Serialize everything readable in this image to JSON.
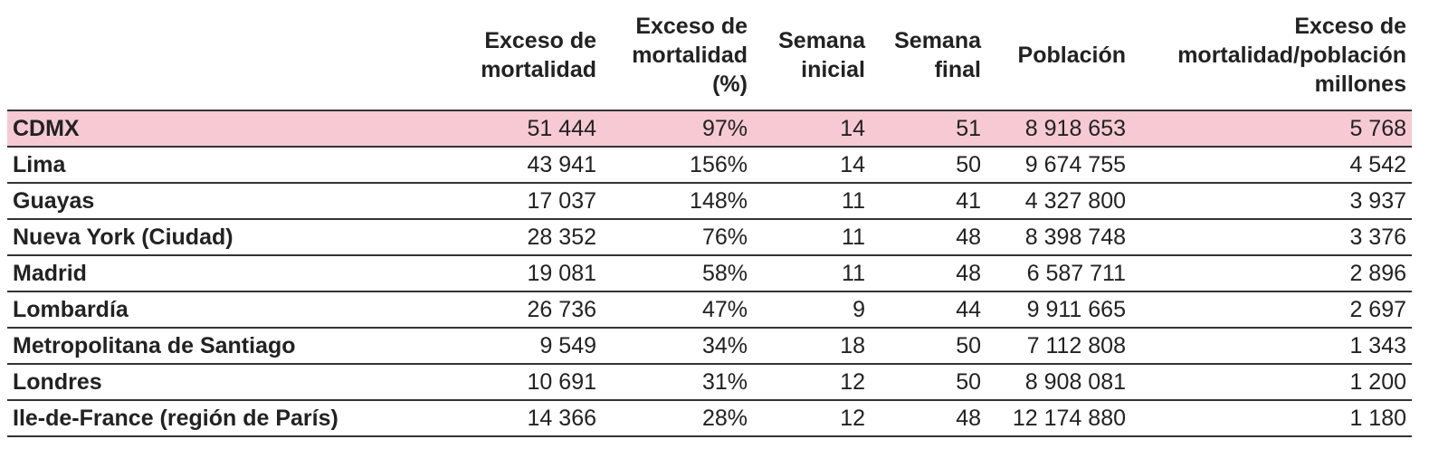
{
  "table": {
    "headers": [
      [
        "Exceso de",
        "mortalidad"
      ],
      [
        "Exceso de",
        "mortalidad",
        "(%)"
      ],
      [
        "Semana",
        "inicial"
      ],
      [
        "Semana",
        "final"
      ],
      [
        "Población"
      ],
      [
        "Exceso de",
        "mortalidad/población",
        "millones"
      ]
    ],
    "highlight_row": 0,
    "rows": [
      [
        "CDMX",
        "51 444",
        "97%",
        "14",
        "51",
        "8 918 653",
        "5 768"
      ],
      [
        "Lima",
        "43 941",
        "156%",
        "14",
        "50",
        "9 674 755",
        "4 542"
      ],
      [
        "Guayas",
        "17 037",
        "148%",
        "11",
        "41",
        "4 327 800",
        "3 937"
      ],
      [
        "Nueva York (Ciudad)",
        "28 352",
        "76%",
        "11",
        "48",
        "8 398 748",
        "3 376"
      ],
      [
        "Madrid",
        "19 081",
        "58%",
        "11",
        "48",
        "6 587 711",
        "2 896"
      ],
      [
        "Lombardía",
        "26 736",
        "47%",
        "9",
        "44",
        "9 911 665",
        "2 697"
      ],
      [
        "Metropolitana de Santiago",
        "9 549",
        "34%",
        "18",
        "50",
        "7 112 808",
        "1 343"
      ],
      [
        "Londres",
        "10 691",
        "31%",
        "12",
        "50",
        "8 908 081",
        "1 200"
      ],
      [
        "Ile-de-France (región de París)",
        "14 366",
        "28%",
        "12",
        "48",
        "12 174 880",
        "1 180"
      ]
    ]
  }
}
